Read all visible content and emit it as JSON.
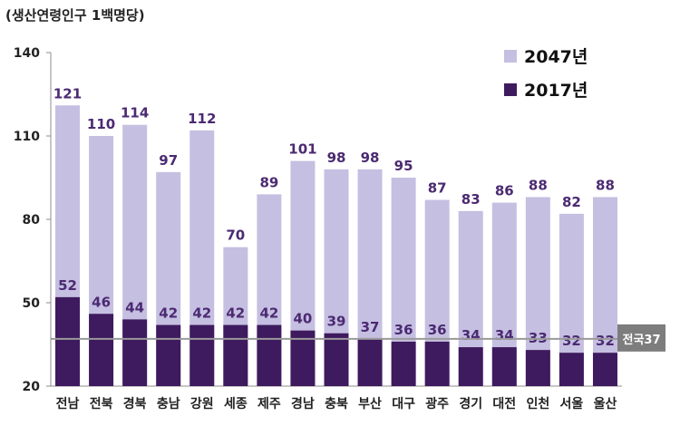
{
  "chart_data": {
    "type": "bar",
    "unit_label": "(생산연령인구 1백명당)",
    "categories": [
      "전남",
      "전북",
      "경북",
      "충남",
      "강원",
      "세종",
      "제주",
      "경남",
      "충북",
      "부산",
      "대구",
      "광주",
      "경기",
      "대전",
      "인천",
      "서울",
      "울산"
    ],
    "series": [
      {
        "name": "2047년",
        "values": [
          121,
          110,
          114,
          97,
          112,
          70,
          89,
          101,
          98,
          98,
          95,
          87,
          83,
          86,
          88,
          82,
          88
        ],
        "color": "#c5bfe1"
      },
      {
        "name": "2017년",
        "values": [
          52,
          46,
          44,
          42,
          42,
          42,
          42,
          40,
          39,
          37,
          36,
          36,
          34,
          34,
          33,
          32,
          32
        ],
        "color": "#3e1a5e"
      }
    ],
    "ylim": [
      20,
      140
    ],
    "yticks": [
      20,
      50,
      80,
      110,
      140
    ],
    "reference": {
      "label": "전국37",
      "value": 37,
      "color": "#9a9a9a"
    },
    "label_color": "#4b2a72",
    "legend_position": "top-right"
  }
}
